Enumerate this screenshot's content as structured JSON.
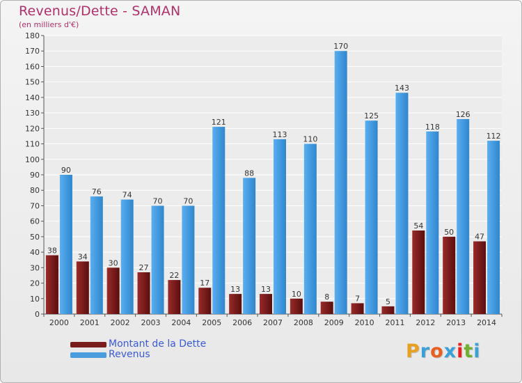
{
  "title": "Revenus/Dette - SAMAN",
  "subtitle": "(en milliers d'€)",
  "logo": {
    "text": "Proxiti",
    "colors": [
      "#e8a020",
      "#3aa0d8",
      "#e86020",
      "#3aa0d8",
      "#e82020",
      "#70b030",
      "#3aa0d8"
    ]
  },
  "legend": [
    {
      "label": "Montant de la Dette",
      "color": "#7a1c1c"
    },
    {
      "label": "Revenus",
      "color": "#4a9ee0"
    }
  ],
  "chart_data": {
    "type": "bar",
    "categories": [
      "2000",
      "2001",
      "2002",
      "2003",
      "2004",
      "2005",
      "2006",
      "2007",
      "2008",
      "2009",
      "2010",
      "2011",
      "2012",
      "2013",
      "2014"
    ],
    "series": [
      {
        "name": "Montant de la Dette",
        "color": "#7a1c1c",
        "values": [
          38,
          34,
          30,
          27,
          22,
          17,
          13,
          13,
          10,
          8,
          7,
          5,
          54,
          50,
          47
        ]
      },
      {
        "name": "Revenus",
        "color": "#4a9ee0",
        "values": [
          90,
          76,
          74,
          70,
          70,
          121,
          88,
          113,
          110,
          170,
          125,
          143,
          118,
          126,
          112
        ]
      }
    ],
    "ylim": [
      0,
      180
    ],
    "yticks": [
      0,
      10,
      20,
      30,
      40,
      50,
      60,
      70,
      80,
      90,
      100,
      110,
      120,
      130,
      140,
      150,
      160,
      170,
      180
    ],
    "grid": true,
    "legend_position": "bottom-left"
  }
}
